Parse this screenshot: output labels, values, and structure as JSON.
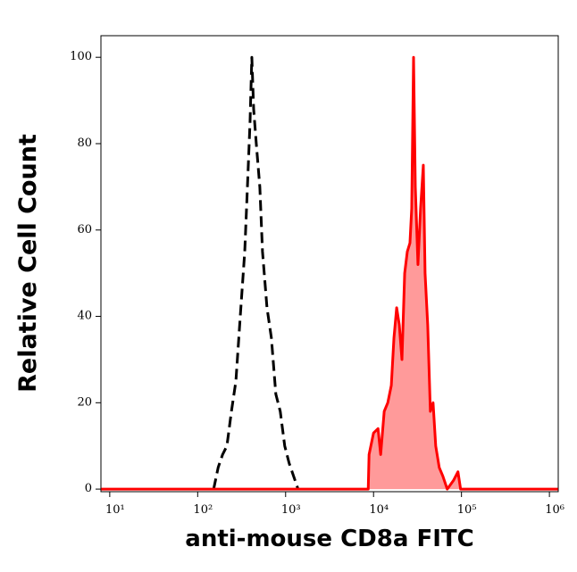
{
  "chart_data": {
    "type": "histogram-overlay",
    "x_label": "anti-mouse CD8a FITC",
    "y_label": "Relative Cell Count",
    "xscale": "log",
    "xlim": [
      7.94,
      1260000
    ],
    "ylim": [
      -0.6,
      105
    ],
    "xticks": [
      {
        "value": 10,
        "label": "10¹"
      },
      {
        "value": 100,
        "label": "10²"
      },
      {
        "value": 1000,
        "label": "10³"
      },
      {
        "value": 10000,
        "label": "10⁴"
      },
      {
        "value": 100000,
        "label": "10⁵"
      },
      {
        "value": 1000000,
        "label": "10⁶"
      }
    ],
    "yticks": [
      0,
      20,
      40,
      60,
      80,
      100
    ],
    "series": [
      {
        "color": "#000000",
        "dashed": true,
        "x": [
          152,
          171,
          192,
          215,
          242,
          272,
          305,
          343,
          368,
          394,
          413,
          433,
          464,
          509,
          546,
          614,
          689,
          774,
          869,
          977,
          1097,
          1233,
          1384
        ],
        "values": [
          0,
          5,
          8,
          10,
          18,
          25,
          40,
          55,
          70,
          85,
          100,
          88,
          80,
          70,
          55,
          42,
          35,
          22,
          18,
          10,
          6,
          3,
          0
        ]
      },
      {
        "color": "#ff0000",
        "fill_color": "#ff9a9a",
        "dashed": false,
        "x": [
          8,
          8700,
          8892,
          10000,
          11250,
          12050,
          13220,
          14520,
          15920,
          17060,
          18320,
          19630,
          21040,
          22590,
          24210,
          25940,
          27170,
          28510,
          29850,
          31990,
          34280,
          36810,
          38550,
          41300,
          44260,
          47530,
          50930,
          55850,
          61380,
          68870,
          81100,
          91200,
          97700,
          1250000
        ],
        "values": [
          0,
          0,
          8,
          13,
          14,
          8,
          18,
          20,
          24,
          35,
          42,
          38,
          30,
          50,
          55,
          57,
          65,
          100,
          70,
          52,
          65,
          75,
          50,
          38,
          18,
          20,
          10,
          5,
          3,
          0,
          2,
          4,
          0,
          0
        ]
      }
    ]
  }
}
